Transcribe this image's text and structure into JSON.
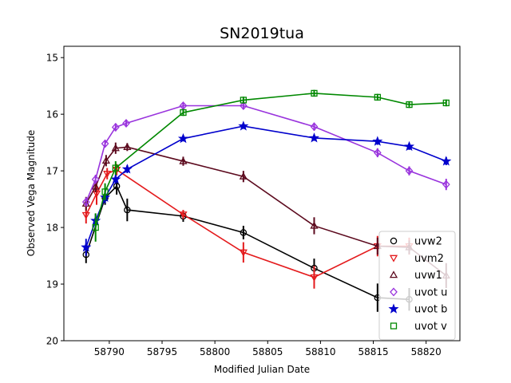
{
  "chart_data": {
    "type": "scatter",
    "title": "SN2019tua",
    "xlabel": "Modified Julian Date",
    "ylabel": "Observed Vega Magnitude",
    "xlim": [
      58785.7,
      58823.2
    ],
    "ylim": [
      20,
      14.8
    ],
    "y_inverted": true,
    "xticks": [
      "58790",
      "58795",
      "58800",
      "58805",
      "58810",
      "58815",
      "58820"
    ],
    "yticks": [
      "15",
      "16",
      "17",
      "18",
      "19",
      "20"
    ],
    "grid": false,
    "legend_position": "bottom-right",
    "series": [
      {
        "name": "uvw2",
        "color": "#000000",
        "marker": "circle",
        "points": [
          {
            "x": 58787.8,
            "y": 18.48,
            "err": 0.15
          },
          {
            "x": 58789.6,
            "y": 17.48,
            "err": 0.12
          },
          {
            "x": 58790.7,
            "y": 17.27,
            "err": 0.15
          },
          {
            "x": 58791.7,
            "y": 17.69,
            "err": 0.2
          },
          {
            "x": 58797.0,
            "y": 17.8,
            "err": 0.1
          },
          {
            "x": 58802.7,
            "y": 18.09,
            "err": 0.12
          },
          {
            "x": 58809.4,
            "y": 18.72,
            "err": 0.17
          },
          {
            "x": 58815.4,
            "y": 19.24,
            "err": 0.25
          },
          {
            "x": 58818.4,
            "y": 19.27,
            "err": 0.2
          }
        ]
      },
      {
        "name": "uvm2",
        "color": "#e41a1c",
        "marker": "triangle-down",
        "points": [
          {
            "x": 58787.8,
            "y": 17.78,
            "err": 0.15
          },
          {
            "x": 58788.8,
            "y": 17.4,
            "err": 0.2
          },
          {
            "x": 58789.8,
            "y": 17.05,
            "err": 0.1
          },
          {
            "x": 58790.7,
            "y": 16.98,
            "err": 0.1
          },
          {
            "x": 58797.0,
            "y": 17.77,
            "err": 0.08
          },
          {
            "x": 58802.7,
            "y": 18.44,
            "err": 0.18
          },
          {
            "x": 58809.4,
            "y": 18.88,
            "err": 0.2
          },
          {
            "x": 58815.4,
            "y": 18.33,
            "err": 0.18
          },
          {
            "x": 58818.4,
            "y": 18.33,
            "err": 0.15
          }
        ]
      },
      {
        "name": "uvw1",
        "color": "#5c0a1e",
        "marker": "triangle-up",
        "points": [
          {
            "x": 58787.8,
            "y": 17.58,
            "err": 0.12
          },
          {
            "x": 58788.7,
            "y": 17.28,
            "err": 0.1
          },
          {
            "x": 58789.7,
            "y": 16.82,
            "err": 0.1
          },
          {
            "x": 58790.6,
            "y": 16.6,
            "err": 0.1
          },
          {
            "x": 58791.7,
            "y": 16.58,
            "err": 0.07
          },
          {
            "x": 58797.0,
            "y": 16.83,
            "err": 0.08
          },
          {
            "x": 58802.7,
            "y": 17.1,
            "err": 0.1
          },
          {
            "x": 58809.4,
            "y": 17.97,
            "err": 0.15
          },
          {
            "x": 58815.4,
            "y": 18.33,
            "err": 0.15
          },
          {
            "x": 58818.4,
            "y": 18.35,
            "err": 0.12
          },
          {
            "x": 58821.9,
            "y": 18.85,
            "err": 0.22
          }
        ]
      },
      {
        "name": "uvot u",
        "color": "#9933dd",
        "marker": "diamond",
        "points": [
          {
            "x": 58787.8,
            "y": 17.55,
            "err": 0.08
          },
          {
            "x": 58788.7,
            "y": 17.15,
            "err": 0.08
          },
          {
            "x": 58789.6,
            "y": 16.52,
            "err": 0.06
          },
          {
            "x": 58790.6,
            "y": 16.23,
            "err": 0.07
          },
          {
            "x": 58791.6,
            "y": 16.16,
            "err": 0.05
          },
          {
            "x": 58797.0,
            "y": 15.85,
            "err": 0.05
          },
          {
            "x": 58802.7,
            "y": 15.85,
            "err": 0.06
          },
          {
            "x": 58809.4,
            "y": 16.22,
            "err": 0.07
          },
          {
            "x": 58815.4,
            "y": 16.68,
            "err": 0.08
          },
          {
            "x": 58818.4,
            "y": 17.0,
            "err": 0.08
          },
          {
            "x": 58821.9,
            "y": 17.24,
            "err": 0.1
          }
        ]
      },
      {
        "name": "uvot b",
        "color": "#0000cc",
        "marker": "star",
        "points": [
          {
            "x": 58787.8,
            "y": 18.35,
            "err": 0.15
          },
          {
            "x": 58788.7,
            "y": 17.88,
            "err": 0.12
          },
          {
            "x": 58789.6,
            "y": 17.47,
            "err": 0.1
          },
          {
            "x": 58790.6,
            "y": 17.15,
            "err": 0.08
          },
          {
            "x": 58791.7,
            "y": 16.97,
            "err": 0.07
          },
          {
            "x": 58797.0,
            "y": 16.43,
            "err": 0.05
          },
          {
            "x": 58802.7,
            "y": 16.21,
            "err": 0.05
          },
          {
            "x": 58809.4,
            "y": 16.42,
            "err": 0.05
          },
          {
            "x": 58815.4,
            "y": 16.48,
            "err": 0.06
          },
          {
            "x": 58818.4,
            "y": 16.57,
            "err": 0.06
          },
          {
            "x": 58821.9,
            "y": 16.83,
            "err": 0.07
          }
        ]
      },
      {
        "name": "uvot v",
        "color": "#008800",
        "marker": "square",
        "points": [
          {
            "x": 58788.7,
            "y": 18.0,
            "err": 0.25
          },
          {
            "x": 58789.6,
            "y": 17.37,
            "err": 0.15
          },
          {
            "x": 58790.6,
            "y": 16.95,
            "err": 0.12
          },
          {
            "x": 58797.0,
            "y": 15.97,
            "err": 0.06
          },
          {
            "x": 58802.7,
            "y": 15.75,
            "err": 0.06
          },
          {
            "x": 58809.4,
            "y": 15.63,
            "err": 0.06
          },
          {
            "x": 58815.4,
            "y": 15.7,
            "err": 0.06
          },
          {
            "x": 58818.4,
            "y": 15.83,
            "err": 0.06
          },
          {
            "x": 58821.9,
            "y": 15.8,
            "err": 0.06
          }
        ]
      }
    ]
  }
}
